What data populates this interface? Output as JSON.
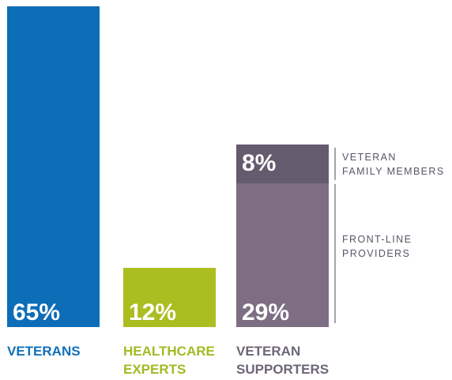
{
  "chart_data": {
    "type": "bar",
    "stacked": true,
    "ylim": [
      0,
      65
    ],
    "grid": false,
    "categories": [
      {
        "lines": [
          "VETERANS"
        ],
        "color": "#1170b8"
      },
      {
        "lines": [
          "HEALTHCARE",
          "EXPERTS"
        ],
        "color": "#a4b923"
      },
      {
        "lines": [
          "VETERAN",
          "SUPPORTERS"
        ],
        "color": "#6e6577"
      }
    ],
    "bars": [
      {
        "category_index": 0,
        "segments": [
          {
            "value": 65,
            "label": "65%",
            "color": "#0d6db7"
          }
        ]
      },
      {
        "category_index": 1,
        "segments": [
          {
            "value": 12,
            "label": "12%",
            "color": "#acbd21"
          }
        ]
      },
      {
        "category_index": 2,
        "segments": [
          {
            "value": 29,
            "label": "29%",
            "color": "#7d6e84",
            "annotation_lines": [
              "FRONT-LINE",
              "PROVIDERS"
            ]
          },
          {
            "value": 8,
            "label": "8%",
            "color": "#665a6e",
            "annotation_lines": [
              "VETERAN",
              "FAMILY MEMBERS"
            ]
          }
        ]
      }
    ]
  }
}
